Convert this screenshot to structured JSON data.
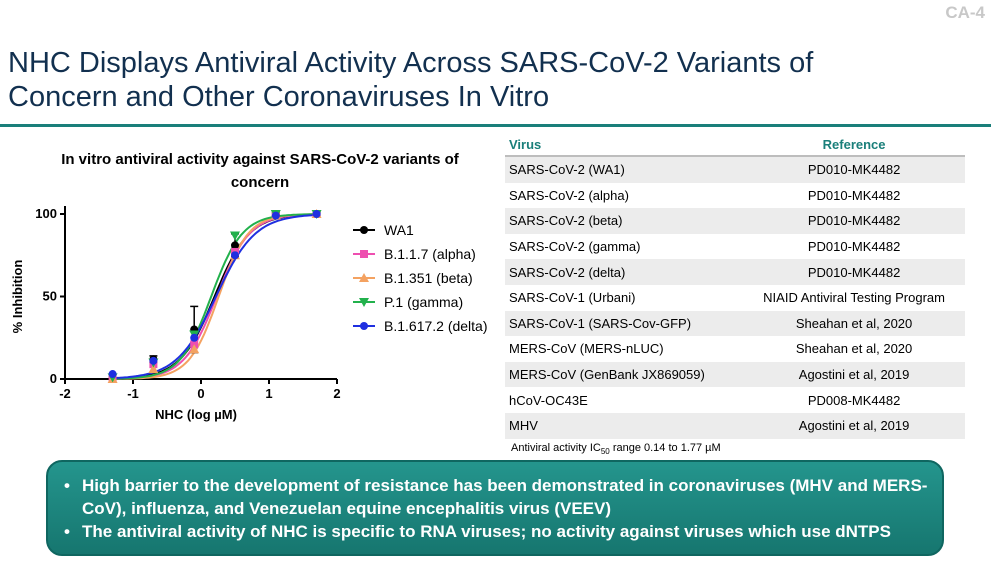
{
  "slide_id": "CA-4",
  "title": "NHC Displays Antiviral Activity Across SARS-CoV-2 Variants of Concern and Other Coronaviruses In Vitro",
  "chart_title": "In vitro antiviral activity against SARS-CoV-2 variants of concern",
  "chart_data": {
    "type": "scatter",
    "title": "In vitro antiviral activity against SARS-CoV-2 variants of concern",
    "xlabel": "NHC (log µM)",
    "ylabel": "% Inhibition",
    "xlim": [
      -2,
      2
    ],
    "ylim": [
      0,
      100
    ],
    "xticks": [
      -2,
      -1,
      0,
      1,
      2
    ],
    "yticks": [
      0,
      50,
      100
    ],
    "legend_position": "right",
    "grid": false,
    "series": [
      {
        "name": "WA1",
        "color": "#000000",
        "marker": "circle",
        "x": [
          -1.3,
          -0.7,
          -0.1,
          0.5,
          1.1,
          1.7
        ],
        "y": [
          1,
          12,
          30,
          81,
          100,
          100
        ],
        "err": [
          0,
          2,
          14,
          7,
          1,
          1
        ],
        "fit": {
          "ec50": 0.2,
          "hill": 1.7
        }
      },
      {
        "name": "B.1.1.7 (alpha)",
        "color": "#ee4fb0",
        "marker": "square",
        "x": [
          -1.3,
          -0.7,
          -0.1,
          0.5,
          1.1,
          1.7
        ],
        "y": [
          0,
          9,
          21,
          77,
          100,
          100
        ],
        "err": [
          0,
          0,
          0,
          0,
          0,
          0
        ],
        "fit": {
          "ec50": 0.23,
          "hill": 1.8
        }
      },
      {
        "name": "B.1.351 (beta)",
        "color": "#f4a261",
        "marker": "triangle-up",
        "x": [
          -1.3,
          -0.7,
          -0.1,
          0.5,
          1.1,
          1.7
        ],
        "y": [
          0,
          6,
          18,
          75,
          99,
          100
        ],
        "err": [
          0,
          0,
          0,
          0,
          0,
          0
        ],
        "fit": {
          "ec50": 0.26,
          "hill": 2.0
        }
      },
      {
        "name": "P.1 (gamma)",
        "color": "#22b14c",
        "marker": "triangle-down",
        "x": [
          -1.3,
          -0.7,
          -0.1,
          0.5,
          1.1,
          1.7
        ],
        "y": [
          1,
          10,
          27,
          87,
          100,
          100
        ],
        "err": [
          0,
          0,
          0,
          0,
          0,
          0
        ],
        "fit": {
          "ec50": 0.15,
          "hill": 1.9
        }
      },
      {
        "name": "B.1.617.2 (delta)",
        "color": "#1f2fe0",
        "marker": "circle",
        "x": [
          -1.3,
          -0.7,
          -0.1,
          0.5,
          1.1,
          1.7
        ],
        "y": [
          3,
          11,
          25,
          75,
          99,
          100
        ],
        "err": [
          0,
          0,
          0,
          0,
          0,
          0
        ],
        "fit": {
          "ec50": 0.22,
          "hill": 1.5
        }
      }
    ]
  },
  "table": {
    "headers": [
      "Virus",
      "Reference"
    ],
    "rows": [
      [
        "SARS-CoV-2 (WA1)",
        "PD010-MK4482"
      ],
      [
        "SARS-CoV-2 (alpha)",
        "PD010-MK4482"
      ],
      [
        "SARS-CoV-2 (beta)",
        "PD010-MK4482"
      ],
      [
        "SARS-CoV-2 (gamma)",
        "PD010-MK4482"
      ],
      [
        "SARS-CoV-2 (delta)",
        "PD010-MK4482"
      ],
      [
        "SARS-CoV-1  (Urbani)",
        "NIAID Antiviral Testing Program"
      ],
      [
        "SARS-CoV-1 (SARS-Cov-GFP)",
        "Sheahan et al, 2020"
      ],
      [
        "MERS-CoV (MERS-nLUC)",
        "Sheahan et al, 2020"
      ],
      [
        "MERS-CoV (GenBank JX869059)",
        "Agostini et al, 2019"
      ],
      [
        "hCoV-OC43E",
        "PD008-MK4482"
      ],
      [
        "MHV",
        "Agostini et al, 2019"
      ]
    ]
  },
  "footnote": {
    "prefix": "Antiviral activity IC",
    "subscript": "50",
    "suffix": " range 0.14 to 1.77 µM"
  },
  "callout": {
    "bullets": [
      "High barrier to the development of resistance has been demonstrated in coronaviruses (MHV and MERS-CoV), influenza, and Venezuelan equine encephalitis virus (VEEV)",
      "The antiviral activity of NHC is specific to RNA viruses; no activity against viruses which use dNTPS"
    ]
  },
  "colors": {
    "title": "#12304f",
    "accent": "#1a7f7a",
    "callout_bg": "#1b857e"
  }
}
